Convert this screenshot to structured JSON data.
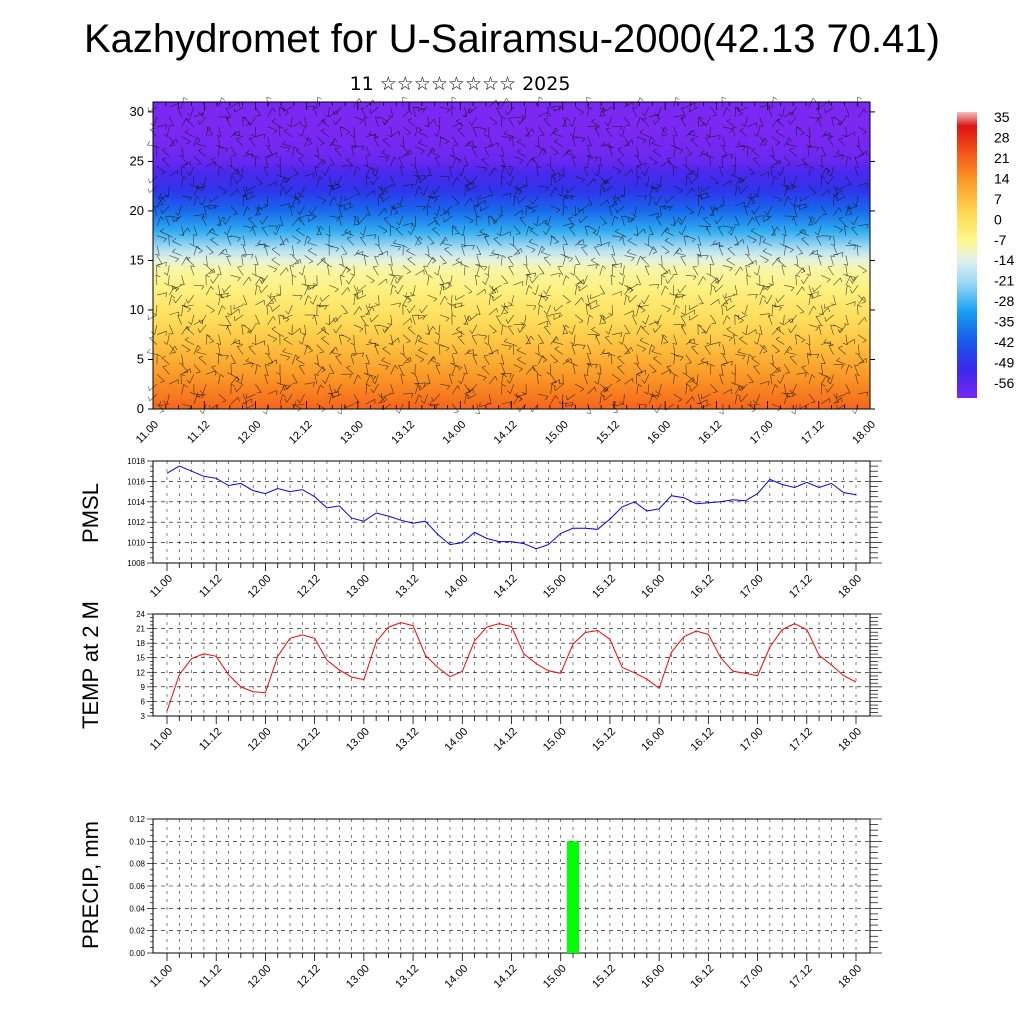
{
  "header": {
    "title": "Kazhydromet for U-Sairamsu-2000(42.13 70.41)",
    "subtitle": "11 ☆☆☆☆☆☆☆☆ 2025"
  },
  "time_labels": [
    "11.00",
    "11.12",
    "12.00",
    "12.12",
    "13.00",
    "13.12",
    "14.00",
    "14.12",
    "15.00",
    "15.12",
    "16.00",
    "16.12",
    "17.00",
    "17.12",
    "18.00"
  ],
  "chart_data": [
    {
      "type": "heatmap",
      "title": "",
      "ylabel": "",
      "y_ticks": [
        0,
        5,
        10,
        15,
        20,
        25,
        30
      ],
      "ylim": [
        0,
        31
      ],
      "colorbar_labels": [
        "35",
        "28",
        "21",
        "14",
        "7",
        "0",
        "-7",
        "-14",
        "-21",
        "-28",
        "-35",
        "-42",
        "-49",
        "-56"
      ],
      "colorbar_range": [
        -63,
        40
      ],
      "profile_levels": [
        0,
        3,
        6,
        9,
        12,
        14,
        15,
        16,
        18,
        20,
        22,
        24,
        25,
        26,
        28,
        31
      ],
      "profile_values": [
        23,
        16,
        9,
        2,
        -4,
        -8,
        -12,
        -18,
        -30,
        -40,
        -50,
        -56,
        -60,
        -62,
        -63,
        -63
      ],
      "colors": {
        "low": "#7a28f2",
        "high": "#e01010",
        "mid": "#fff080"
      }
    },
    {
      "type": "line",
      "ylabel": "PMSL",
      "ylim": [
        1008,
        1018
      ],
      "y_ticks": [
        1008,
        1010,
        1012,
        1014,
        1016,
        1018
      ],
      "color": "#0000ff",
      "x_step_hours": 3,
      "values": [
        1016.8,
        1017.5,
        1017.0,
        1016.5,
        1016.3,
        1015.6,
        1015.8,
        1015.1,
        1014.8,
        1015.3,
        1015.0,
        1015.2,
        1014.5,
        1013.4,
        1013.6,
        1012.4,
        1012.1,
        1012.9,
        1012.6,
        1012.2,
        1011.9,
        1012.1,
        1010.8,
        1009.8,
        1010.0,
        1011.0,
        1010.4,
        1010.1,
        1010.1,
        1009.9,
        1009.4,
        1009.8,
        1010.9,
        1011.4,
        1011.4,
        1011.3,
        1012.3,
        1013.5,
        1014.0,
        1013.1,
        1013.3,
        1014.6,
        1014.4,
        1013.8,
        1013.9,
        1014.0,
        1014.2,
        1014.1,
        1014.8,
        1016.2,
        1015.7,
        1015.4,
        1015.9,
        1015.4,
        1015.8,
        1014.9,
        1014.7
      ]
    },
    {
      "type": "line",
      "ylabel": "TEMP at 2 M",
      "ylim": [
        3,
        24
      ],
      "y_ticks": [
        3,
        6,
        9,
        12,
        15,
        18,
        21,
        24
      ],
      "color": "#ff0000",
      "x_step_hours": 3,
      "values": [
        4,
        11.5,
        14.8,
        15.8,
        15.3,
        11.5,
        9,
        8,
        7.8,
        15.3,
        19,
        19.7,
        19,
        14.5,
        12.5,
        11,
        10.5,
        18.3,
        21.3,
        22.2,
        21.6,
        15.5,
        13,
        11.1,
        12.2,
        18.5,
        21.3,
        22,
        21.4,
        15.8,
        13.8,
        12.3,
        11.8,
        17.8,
        20.2,
        20.6,
        18.8,
        13,
        11.9,
        10.6,
        8.7,
        16.1,
        19.3,
        20.5,
        19.8,
        15,
        12.2,
        11.8,
        11.3,
        17.2,
        20.8,
        22,
        20.8,
        15.5,
        13.5,
        11.3,
        10
      ]
    },
    {
      "type": "bar",
      "ylabel": "PRECIP, mm",
      "ylim": [
        0,
        0.12
      ],
      "y_ticks": [
        "0.00",
        "0.02",
        "0.04",
        "0.06",
        "0.08",
        "0.10",
        "0.12"
      ],
      "color": "#00ff00",
      "x_step_hours": 3,
      "values": [
        0,
        0,
        0,
        0,
        0,
        0,
        0,
        0,
        0,
        0,
        0,
        0,
        0,
        0,
        0,
        0,
        0,
        0,
        0,
        0,
        0,
        0,
        0,
        0,
        0,
        0,
        0,
        0,
        0,
        0,
        0,
        0,
        0,
        0.1,
        0,
        0,
        0,
        0,
        0,
        0,
        0,
        0,
        0,
        0,
        0,
        0,
        0,
        0,
        0,
        0,
        0,
        0,
        0,
        0,
        0,
        0
      ]
    }
  ]
}
